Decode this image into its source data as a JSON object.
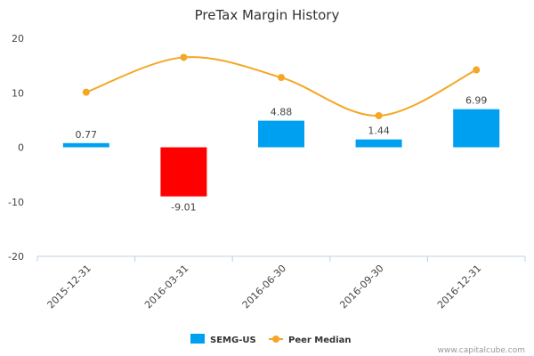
{
  "chart_data": {
    "type": "bar",
    "title": "PreTax Margin History",
    "categories": [
      "2015-12-31",
      "2016-03-31",
      "2016-06-30",
      "2016-09-30",
      "2016-12-31"
    ],
    "ylim": [
      -20,
      20
    ],
    "yticks": [
      -20,
      -10,
      0,
      10,
      20
    ],
    "grid": false,
    "legend_position": "bottom",
    "series": [
      {
        "name": "SEMG-US",
        "kind": "bar",
        "values": [
          0.77,
          -9.01,
          4.88,
          1.44,
          6.99
        ],
        "data_labels": [
          "0.77",
          "-9.01",
          "4.88",
          "1.44",
          "6.99"
        ],
        "color": "#00a0f0",
        "negative_color": "#ff0000"
      },
      {
        "name": "Peer Median",
        "kind": "line",
        "values": [
          10.1,
          16.5,
          12.8,
          5.8,
          14.2
        ],
        "color": "#f5a623"
      }
    ]
  },
  "credit": "www.capitalcube.com"
}
